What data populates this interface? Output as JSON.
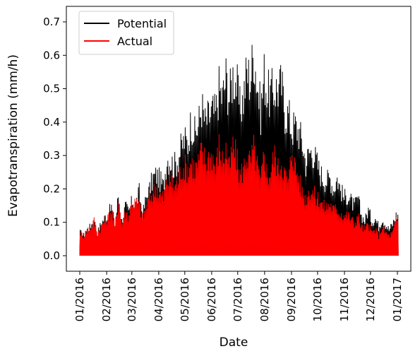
{
  "chart_data": {
    "type": "line",
    "title": "",
    "xlabel": "Date",
    "ylabel": "Evapotranspiration (mm/h)",
    "x_range": [
      "2016-01-01",
      "2017-01-01"
    ],
    "ylim": [
      -0.035,
      0.75
    ],
    "x_ticks": [
      "01/2016",
      "02/2016",
      "03/2016",
      "04/2016",
      "05/2016",
      "06/2016",
      "07/2016",
      "08/2016",
      "09/2016",
      "10/2016",
      "11/2016",
      "12/2016",
      "01/2017"
    ],
    "x_tick_dates": [
      "2016-01-01",
      "2016-02-01",
      "2016-03-01",
      "2016-04-01",
      "2016-05-01",
      "2016-06-01",
      "2016-07-01",
      "2016-08-01",
      "2016-09-01",
      "2016-10-01",
      "2016-11-01",
      "2016-12-01",
      "2017-01-01"
    ],
    "y_ticks": [
      "0.0",
      "0.1",
      "0.2",
      "0.3",
      "0.4",
      "0.5",
      "0.6",
      "0.7"
    ],
    "grid": false,
    "legend": "upper-left",
    "note": "Hourly series; values below are approximate daily peak (midday) values read from the plot. Each day drops to 0.0 at night.",
    "series": [
      {
        "name": "Potential",
        "color": "#000000",
        "dates": [
          "2016-01-01",
          "2016-01-05",
          "2016-01-09",
          "2016-01-13",
          "2016-01-17",
          "2016-01-21",
          "2016-01-25",
          "2016-01-29",
          "2016-02-02",
          "2016-02-06",
          "2016-02-10",
          "2016-02-14",
          "2016-02-18",
          "2016-02-22",
          "2016-02-26",
          "2016-03-01",
          "2016-03-05",
          "2016-03-09",
          "2016-03-13",
          "2016-03-17",
          "2016-03-21",
          "2016-03-25",
          "2016-03-29",
          "2016-04-02",
          "2016-04-06",
          "2016-04-10",
          "2016-04-14",
          "2016-04-18",
          "2016-04-22",
          "2016-04-26",
          "2016-04-30",
          "2016-05-04",
          "2016-05-08",
          "2016-05-12",
          "2016-05-16",
          "2016-05-20",
          "2016-05-24",
          "2016-05-28",
          "2016-06-01",
          "2016-06-05",
          "2016-06-09",
          "2016-06-13",
          "2016-06-17",
          "2016-06-21",
          "2016-06-25",
          "2016-06-29",
          "2016-07-03",
          "2016-07-07",
          "2016-07-11",
          "2016-07-15",
          "2016-07-19",
          "2016-07-23",
          "2016-07-27",
          "2016-07-31",
          "2016-08-04",
          "2016-08-08",
          "2016-08-12",
          "2016-08-16",
          "2016-08-20",
          "2016-08-24",
          "2016-08-28",
          "2016-09-01",
          "2016-09-05",
          "2016-09-09",
          "2016-09-13",
          "2016-09-17",
          "2016-09-21",
          "2016-09-25",
          "2016-09-29",
          "2016-10-03",
          "2016-10-07",
          "2016-10-11",
          "2016-10-15",
          "2016-10-19",
          "2016-10-23",
          "2016-10-27",
          "2016-10-31",
          "2016-11-04",
          "2016-11-08",
          "2016-11-12",
          "2016-11-16",
          "2016-11-20",
          "2016-11-24",
          "2016-11-28",
          "2016-12-02",
          "2016-12-06",
          "2016-12-10",
          "2016-12-14",
          "2016-12-18",
          "2016-12-22",
          "2016-12-26",
          "2016-12-30"
        ],
        "values": [
          0.08,
          0.07,
          0.09,
          0.1,
          0.12,
          0.08,
          0.11,
          0.13,
          0.14,
          0.17,
          0.1,
          0.21,
          0.12,
          0.17,
          0.15,
          0.19,
          0.18,
          0.22,
          0.14,
          0.2,
          0.23,
          0.27,
          0.28,
          0.26,
          0.24,
          0.34,
          0.33,
          0.31,
          0.33,
          0.37,
          0.4,
          0.39,
          0.47,
          0.42,
          0.45,
          0.52,
          0.46,
          0.48,
          0.5,
          0.49,
          0.58,
          0.55,
          0.62,
          0.55,
          0.63,
          0.6,
          0.51,
          0.55,
          0.64,
          0.61,
          0.71,
          0.6,
          0.5,
          0.63,
          0.56,
          0.56,
          0.58,
          0.58,
          0.59,
          0.5,
          0.49,
          0.44,
          0.45,
          0.43,
          0.39,
          0.32,
          0.36,
          0.36,
          0.33,
          0.29,
          0.27,
          0.26,
          0.27,
          0.23,
          0.27,
          0.23,
          0.2,
          0.21,
          0.19,
          0.17,
          0.2,
          0.14,
          0.12,
          0.16,
          0.12,
          0.13,
          0.1,
          0.13,
          0.11,
          0.09,
          0.11,
          0.14
        ]
      },
      {
        "name": "Actual",
        "color": "#ff0000",
        "dates": [
          "2016-01-01",
          "2016-01-05",
          "2016-01-09",
          "2016-01-13",
          "2016-01-17",
          "2016-01-21",
          "2016-01-25",
          "2016-01-29",
          "2016-02-02",
          "2016-02-06",
          "2016-02-10",
          "2016-02-14",
          "2016-02-18",
          "2016-02-22",
          "2016-02-26",
          "2016-03-01",
          "2016-03-05",
          "2016-03-09",
          "2016-03-13",
          "2016-03-17",
          "2016-03-21",
          "2016-03-25",
          "2016-03-29",
          "2016-04-02",
          "2016-04-06",
          "2016-04-10",
          "2016-04-14",
          "2016-04-18",
          "2016-04-22",
          "2016-04-26",
          "2016-04-30",
          "2016-05-04",
          "2016-05-08",
          "2016-05-12",
          "2016-05-16",
          "2016-05-20",
          "2016-05-24",
          "2016-05-28",
          "2016-06-01",
          "2016-06-05",
          "2016-06-09",
          "2016-06-13",
          "2016-06-17",
          "2016-06-21",
          "2016-06-25",
          "2016-06-29",
          "2016-07-03",
          "2016-07-07",
          "2016-07-11",
          "2016-07-15",
          "2016-07-19",
          "2016-07-23",
          "2016-07-27",
          "2016-07-31",
          "2016-08-04",
          "2016-08-08",
          "2016-08-12",
          "2016-08-16",
          "2016-08-20",
          "2016-08-24",
          "2016-08-28",
          "2016-09-01",
          "2016-09-05",
          "2016-09-09",
          "2016-09-13",
          "2016-09-17",
          "2016-09-21",
          "2016-09-25",
          "2016-09-29",
          "2016-10-03",
          "2016-10-07",
          "2016-10-11",
          "2016-10-15",
          "2016-10-19",
          "2016-10-23",
          "2016-10-27",
          "2016-10-31",
          "2016-11-04",
          "2016-11-08",
          "2016-11-12",
          "2016-11-16",
          "2016-11-20",
          "2016-11-24",
          "2016-11-28",
          "2016-12-02",
          "2016-12-06",
          "2016-12-10",
          "2016-12-14",
          "2016-12-18",
          "2016-12-22",
          "2016-12-26",
          "2016-12-30"
        ],
        "values": [
          0.08,
          0.07,
          0.09,
          0.1,
          0.12,
          0.08,
          0.1,
          0.12,
          0.13,
          0.16,
          0.1,
          0.19,
          0.11,
          0.15,
          0.14,
          0.19,
          0.18,
          0.18,
          0.13,
          0.17,
          0.2,
          0.22,
          0.24,
          0.21,
          0.2,
          0.26,
          0.26,
          0.24,
          0.25,
          0.3,
          0.31,
          0.3,
          0.33,
          0.3,
          0.32,
          0.36,
          0.33,
          0.34,
          0.35,
          0.3,
          0.38,
          0.33,
          0.37,
          0.3,
          0.38,
          0.34,
          0.28,
          0.3,
          0.35,
          0.32,
          0.37,
          0.31,
          0.25,
          0.36,
          0.27,
          0.3,
          0.35,
          0.3,
          0.33,
          0.28,
          0.25,
          0.38,
          0.3,
          0.27,
          0.22,
          0.2,
          0.23,
          0.22,
          0.2,
          0.2,
          0.17,
          0.17,
          0.18,
          0.16,
          0.16,
          0.15,
          0.14,
          0.14,
          0.13,
          0.11,
          0.14,
          0.1,
          0.09,
          0.11,
          0.08,
          0.09,
          0.07,
          0.1,
          0.08,
          0.07,
          0.08,
          0.12
        ]
      }
    ]
  }
}
